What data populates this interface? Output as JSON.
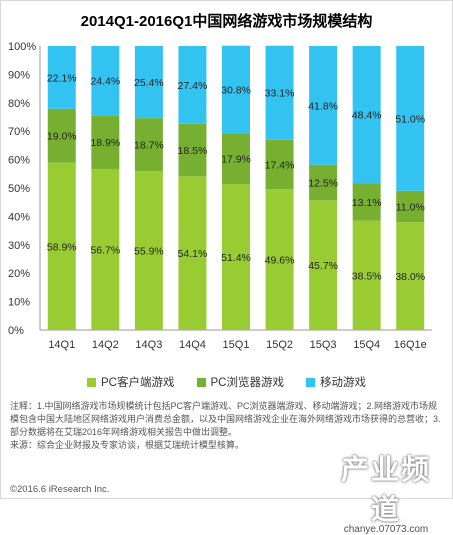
{
  "title": "2014Q1-2016Q1中国网络游戏市场规模结构",
  "legend": [
    {
      "label": "PC客户端游戏",
      "color": "#99cc33"
    },
    {
      "label": "PC浏览器游戏",
      "color": "#77b030"
    },
    {
      "label": "移动游戏",
      "color": "#33c3f0"
    }
  ],
  "chart_data": {
    "type": "bar",
    "stacked": true,
    "categories": [
      "14Q1",
      "14Q2",
      "14Q3",
      "14Q4",
      "15Q1",
      "15Q2",
      "15Q3",
      "15Q4",
      "16Q1e"
    ],
    "series": [
      {
        "name": "PC客户端游戏",
        "color": "#99cc33",
        "values": [
          58.9,
          56.7,
          55.9,
          54.1,
          51.4,
          49.6,
          45.7,
          38.5,
          38.0
        ]
      },
      {
        "name": "PC浏览器游戏",
        "color": "#77b030",
        "values": [
          19.0,
          18.9,
          18.7,
          18.5,
          17.9,
          17.4,
          12.5,
          13.1,
          11.0
        ]
      },
      {
        "name": "移动游戏",
        "color": "#33c3f0",
        "values": [
          22.1,
          24.4,
          25.4,
          27.4,
          30.8,
          33.1,
          41.8,
          48.4,
          51.0
        ]
      }
    ],
    "yticks": [
      "0%",
      "10%",
      "20%",
      "30%",
      "40%",
      "50%",
      "60%",
      "70%",
      "80%",
      "90%",
      "100%"
    ],
    "ylim": [
      0,
      100
    ],
    "value_suffix": "%",
    "legend_position": "bottom"
  },
  "notes": [
    "注释：1.中国网络游戏市场规模统计包括PC客户端游戏、PC浏览器端游戏、移动端游戏；2.网络游戏市场规模包含中国大陆地区网络游戏用户消费总金额，以及中国网络游戏企业在海外网络游戏市场获得的总营收；3.部分数据将在艾瑞2016年网络游戏相关报告中做出调整。",
    "来源：综合企业财报及专家访谈，根据艾瑞统计模型核算。"
  ],
  "copyright": "©2016.6 iResearch Inc.",
  "watermark": {
    "main": "产业频道",
    "url": "chanye.07073.com"
  }
}
